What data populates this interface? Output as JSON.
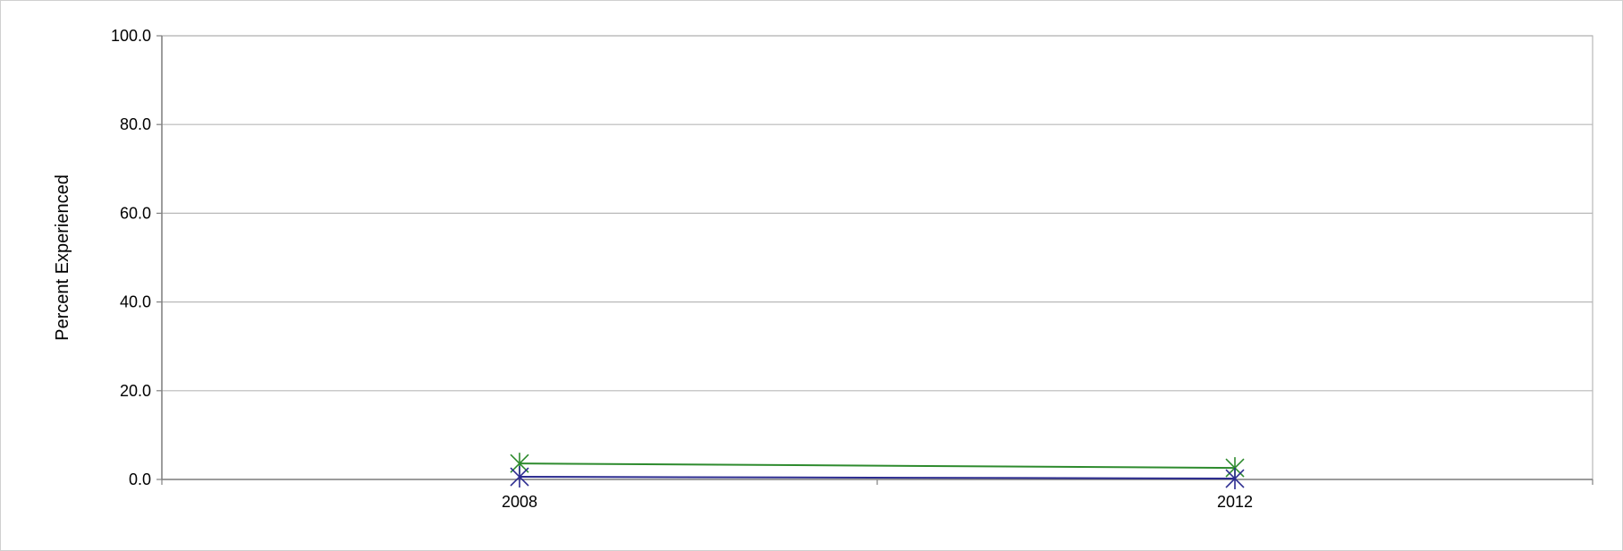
{
  "chart_data": {
    "type": "line",
    "title": "",
    "xlabel": "",
    "ylabel": "Percent Experienced",
    "categories": [
      "2008",
      "2012"
    ],
    "yticks": [
      "0.0",
      "20.0",
      "40.0",
      "60.0",
      "80.0",
      "100.0"
    ],
    "ylim": [
      0,
      100
    ],
    "grid": true,
    "legend": "none",
    "series": [
      {
        "color": "#2e8b2e",
        "marker": "asterisk",
        "values": [
          3.6,
          2.6
        ]
      },
      {
        "color": "#2b2b8f",
        "marker": "asterisk",
        "values": [
          0.6,
          0.2
        ]
      }
    ]
  }
}
